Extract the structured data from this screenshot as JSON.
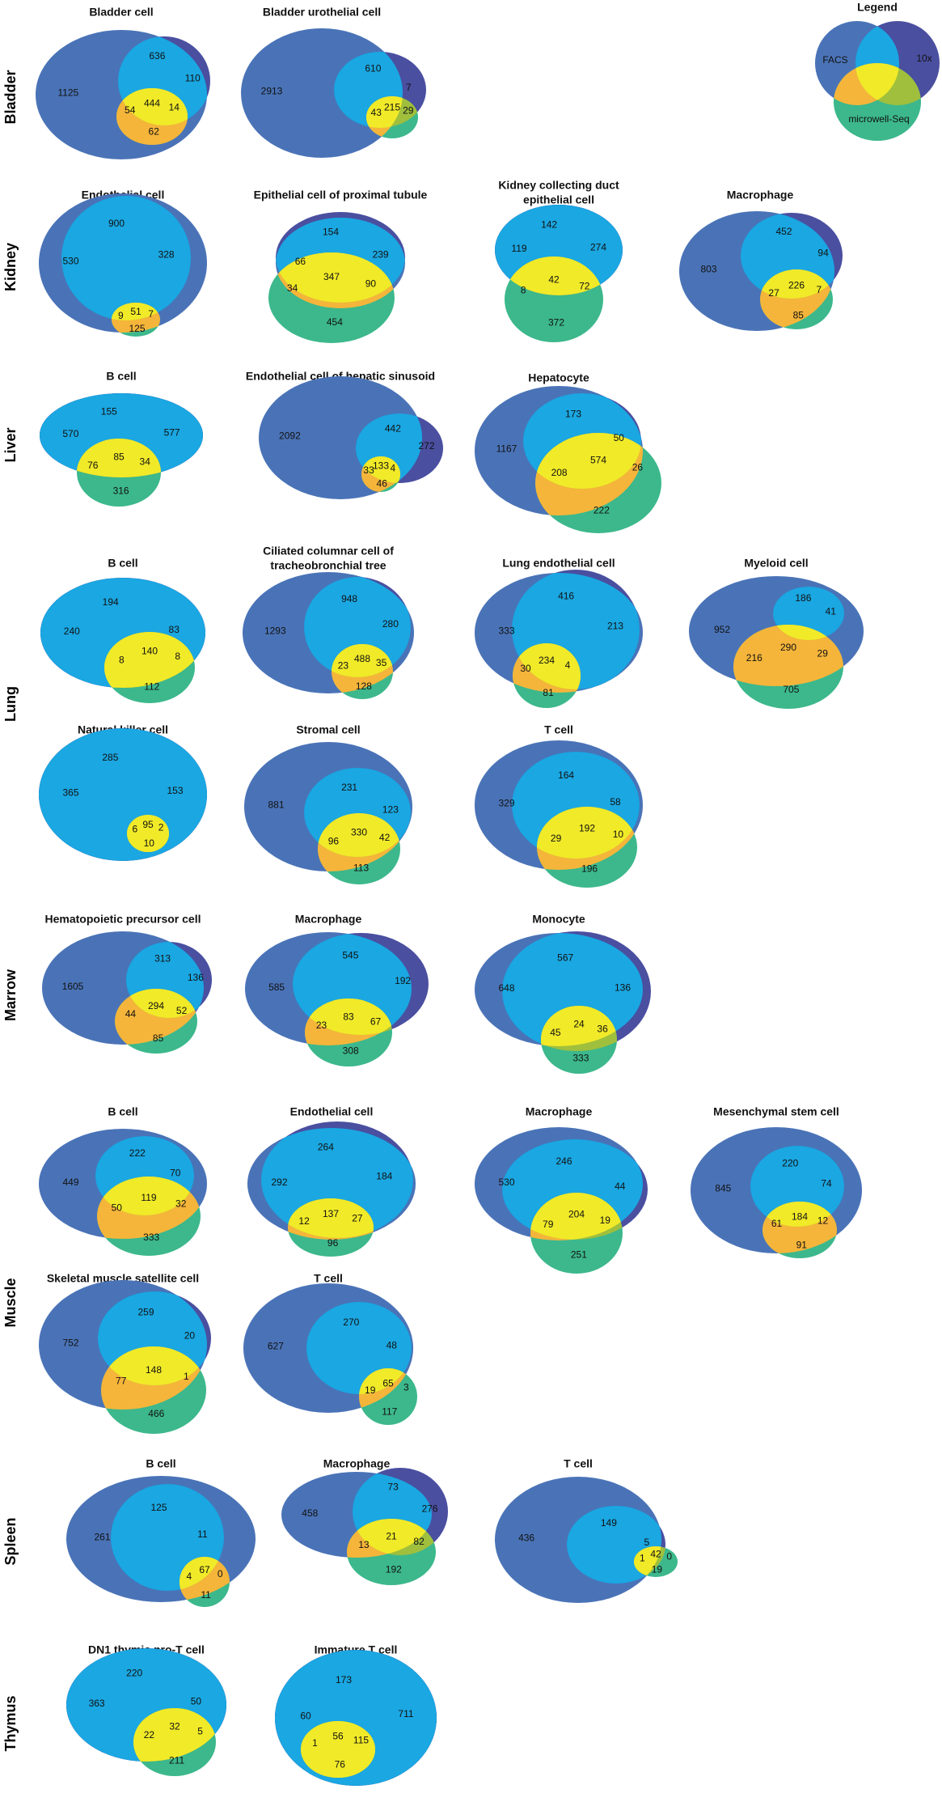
{
  "colors": {
    "facs": "#4a73b7",
    "tenx": "#4a4fa0",
    "microwell": "#3cb88c",
    "facs_10x": "#1aa7e2",
    "facs_mw": "#f5b53a",
    "tenx_mw": "#9fbf3d",
    "all_three": "#f1ea28"
  },
  "legend": {
    "title": "Legend",
    "facs_label": "FACS",
    "tenx_label": "10x",
    "microwell_label": "microwell-Seq"
  },
  "tissues": [
    {
      "name": "Bladder",
      "panels": [
        {
          "title": [
            "Bladder cell"
          ],
          "counts": {
            "facs": "1125",
            "facs_10x": "636",
            "tenx": "110",
            "all_three": "444",
            "tenx_mw": "14",
            "facs_mw": "54",
            "microwell": "62"
          }
        },
        {
          "title": [
            "Bladder urothelial cell"
          ],
          "counts": {
            "facs": "2913",
            "facs_10x": "610",
            "tenx": "7",
            "all_three": "215",
            "tenx_mw": "29",
            "facs_mw": "43",
            "microwell": ""
          }
        }
      ]
    },
    {
      "name": "Kidney",
      "panels": [
        {
          "title": [
            "Endothelial cell"
          ],
          "counts": {
            "facs": "530",
            "facs_10x": "900",
            "tenx": "328",
            "all_three": "51",
            "tenx_mw": "7",
            "facs_mw": "9",
            "microwell": "125"
          }
        },
        {
          "title": [
            "Epithelial cell of proximal tubule"
          ],
          "counts": {
            "facs": "66",
            "facs_10x": "154",
            "tenx": "239",
            "all_three": "347",
            "tenx_mw": "90",
            "facs_mw": "34",
            "microwell": "454"
          }
        },
        {
          "title": [
            "Kidney collecting duct",
            "epithelial cell"
          ],
          "counts": {
            "facs": "119",
            "facs_10x": "142",
            "tenx": "274",
            "all_three": "42",
            "tenx_mw": "72",
            "facs_mw": "8",
            "microwell": "372"
          }
        },
        {
          "title": [
            "Macrophage"
          ],
          "counts": {
            "facs": "803",
            "facs_10x": "452",
            "tenx": "94",
            "all_three": "226",
            "tenx_mw": "7",
            "facs_mw": "27",
            "microwell": "85"
          }
        }
      ]
    },
    {
      "name": "Liver",
      "panels": [
        {
          "title": [
            "B cell"
          ],
          "counts": {
            "facs": "570",
            "facs_10x": "155",
            "tenx": "577",
            "all_three": "85",
            "tenx_mw": "34",
            "facs_mw": "76",
            "microwell": "316"
          }
        },
        {
          "title": [
            "Endothelial cell of hepatic sinusoid"
          ],
          "counts": {
            "facs": "2092",
            "facs_10x": "442",
            "tenx": "272",
            "all_three": "133",
            "tenx_mw": "4",
            "facs_mw": "33",
            "microwell": "46"
          }
        },
        {
          "title": [
            "Hepatocyte"
          ],
          "counts": {
            "facs": "1167",
            "facs_10x": "173",
            "tenx": "50",
            "all_three": "574",
            "tenx_mw": "26",
            "facs_mw": "208",
            "microwell": "222"
          }
        }
      ]
    },
    {
      "name": "Lung",
      "panels": [
        {
          "title": [
            "B cell"
          ],
          "counts": {
            "facs": "240",
            "facs_10x": "194",
            "tenx": "83",
            "all_three": "140",
            "tenx_mw": "8",
            "facs_mw": "8",
            "microwell": "112"
          }
        },
        {
          "title": [
            "Ciliated columnar cell of",
            "tracheobronchial tree"
          ],
          "counts": {
            "facs": "1293",
            "facs_10x": "948",
            "tenx": "280",
            "all_three": "488",
            "tenx_mw": "35",
            "facs_mw": "23",
            "microwell": "128"
          }
        },
        {
          "title": [
            "Lung endothelial cell"
          ],
          "counts": {
            "facs": "333",
            "facs_10x": "416",
            "tenx": "213",
            "all_three": "234",
            "tenx_mw": "4",
            "facs_mw": "30",
            "microwell": "81"
          }
        },
        {
          "title": [
            "Myeloid cell"
          ],
          "counts": {
            "facs": "952",
            "facs_10x": "186",
            "tenx": "41",
            "all_three": "290",
            "tenx_mw": "29",
            "facs_mw": "216",
            "microwell": "705"
          }
        },
        {
          "title": [
            "Natural killer cell"
          ],
          "counts": {
            "facs": "365",
            "facs_10x": "285",
            "tenx": "153",
            "all_three": "95",
            "tenx_mw": "2",
            "facs_mw": "6",
            "microwell": "10"
          }
        },
        {
          "title": [
            "Stromal cell"
          ],
          "counts": {
            "facs": "881",
            "facs_10x": "231",
            "tenx": "123",
            "all_three": "330",
            "tenx_mw": "42",
            "facs_mw": "96",
            "microwell": "113"
          }
        },
        {
          "title": [
            "T cell"
          ],
          "counts": {
            "facs": "329",
            "facs_10x": "164",
            "tenx": "58",
            "all_three": "192",
            "tenx_mw": "10",
            "facs_mw": "29",
            "microwell": "196"
          }
        }
      ]
    },
    {
      "name": "Marrow",
      "panels": [
        {
          "title": [
            "Hematopoietic precursor cell"
          ],
          "counts": {
            "facs": "1605",
            "facs_10x": "313",
            "tenx": "136",
            "all_three": "294",
            "tenx_mw": "52",
            "facs_mw": "44",
            "microwell": "85"
          }
        },
        {
          "title": [
            "Macrophage"
          ],
          "counts": {
            "facs": "585",
            "facs_10x": "545",
            "tenx": "192",
            "all_three": "83",
            "tenx_mw": "67",
            "facs_mw": "23",
            "microwell": "308"
          }
        },
        {
          "title": [
            "Monocyte"
          ],
          "counts": {
            "facs": "648",
            "facs_10x": "567",
            "tenx": "136",
            "all_three": "24",
            "tenx_mw": "36",
            "facs_mw": "45",
            "microwell": "333"
          }
        }
      ]
    },
    {
      "name": "Muscle",
      "panels": [
        {
          "title": [
            "B cell"
          ],
          "counts": {
            "facs": "449",
            "facs_10x": "222",
            "tenx": "70",
            "all_three": "119",
            "tenx_mw": "32",
            "facs_mw": "50",
            "microwell": "333"
          }
        },
        {
          "title": [
            "Endothelial cell"
          ],
          "counts": {
            "facs": "292",
            "facs_10x": "264",
            "tenx": "184",
            "all_three": "137",
            "tenx_mw": "27",
            "facs_mw": "12",
            "microwell": "96"
          }
        },
        {
          "title": [
            "Macrophage"
          ],
          "counts": {
            "facs": "530",
            "facs_10x": "246",
            "tenx": "44",
            "all_three": "204",
            "tenx_mw": "19",
            "facs_mw": "79",
            "microwell": "251"
          }
        },
        {
          "title": [
            "Mesenchymal stem cell"
          ],
          "counts": {
            "facs": "845",
            "facs_10x": "220",
            "tenx": "74",
            "all_three": "184",
            "tenx_mw": "12",
            "facs_mw": "61",
            "microwell": "91"
          }
        },
        {
          "title": [
            "Skeletal muscle satellite cell"
          ],
          "counts": {
            "facs": "752",
            "facs_10x": "259",
            "tenx": "20",
            "all_three": "148",
            "tenx_mw": "1",
            "facs_mw": "77",
            "microwell": "466"
          }
        },
        {
          "title": [
            "T cell"
          ],
          "counts": {
            "facs": "627",
            "facs_10x": "270",
            "tenx": "48",
            "all_three": "65",
            "tenx_mw": "3",
            "facs_mw": "19",
            "microwell": "117"
          }
        }
      ]
    },
    {
      "name": "Spleen",
      "panels": [
        {
          "title": [
            "B cell"
          ],
          "counts": {
            "facs": "261",
            "facs_10x": "125",
            "tenx": "11",
            "all_three": "67",
            "tenx_mw": "0",
            "facs_mw": "4",
            "microwell": "11"
          }
        },
        {
          "title": [
            "Macrophage"
          ],
          "counts": {
            "facs": "458",
            "facs_10x": "73",
            "tenx": "276",
            "all_three": "21",
            "tenx_mw": "82",
            "facs_mw": "13",
            "microwell": "192"
          }
        },
        {
          "title": [
            "T cell"
          ],
          "counts": {
            "facs": "436",
            "facs_10x": "149",
            "tenx": "5",
            "all_three": "42",
            "tenx_mw": "0",
            "facs_mw": "1",
            "microwell": "19"
          }
        }
      ]
    },
    {
      "name": "Thymus",
      "panels": [
        {
          "title": [
            "DN1 thymic pro-T cell"
          ],
          "counts": {
            "facs": "363",
            "facs_10x": "220",
            "tenx": "50",
            "all_three": "32",
            "tenx_mw": "5",
            "facs_mw": "22",
            "microwell": "211"
          }
        },
        {
          "title": [
            "Immature T cell"
          ],
          "counts": {
            "facs": "60",
            "facs_10x": "173",
            "tenx": "711",
            "all_three": "56",
            "tenx_mw": "115",
            "facs_mw": "1",
            "microwell": "76"
          }
        }
      ]
    }
  ]
}
